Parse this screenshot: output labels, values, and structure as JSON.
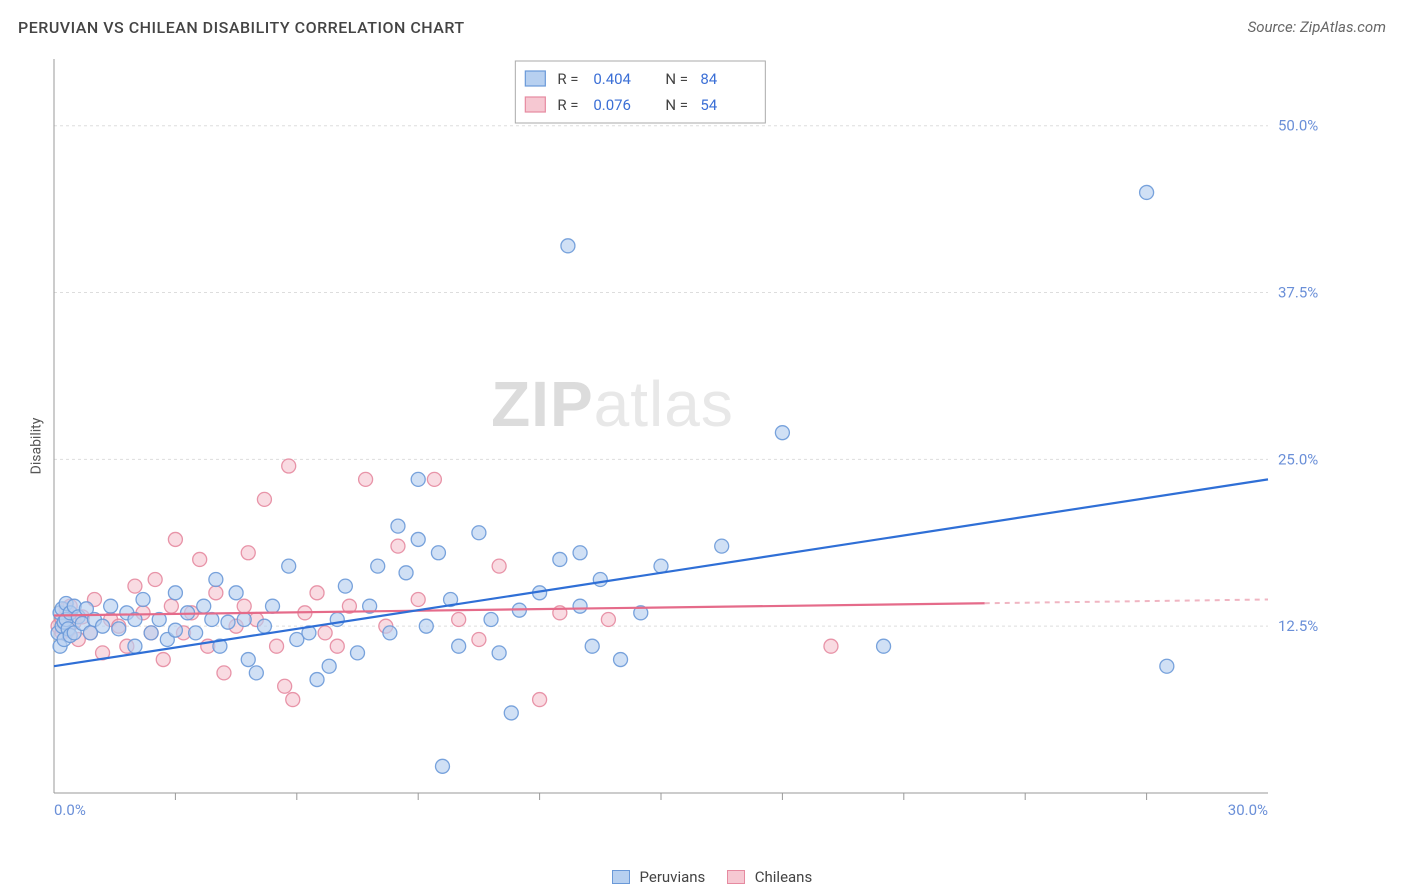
{
  "title": "PERUVIAN VS CHILEAN DISABILITY CORRELATION CHART",
  "source_label": "Source: ZipAtlas.com",
  "y_axis_label": "Disability",
  "watermark": {
    "bold": "ZIP",
    "light": "atlas"
  },
  "chart": {
    "type": "scatter",
    "background_color": "#ffffff",
    "grid_color": "#dddddd",
    "axis_color": "#999999",
    "xlim": [
      0,
      30
    ],
    "ylim": [
      0,
      55
    ],
    "x_tick_step": 3,
    "y_gridlines": [
      12.5,
      25.0,
      37.5,
      50.0
    ],
    "y_tick_labels": [
      "12.5%",
      "25.0%",
      "37.5%",
      "50.0%"
    ],
    "x_origin_label": "0.0%",
    "x_max_label": "30.0%",
    "marker_radius": 7,
    "marker_stroke_width": 1.3,
    "series": [
      {
        "name": "Peruvians",
        "color_fill": "#b7d0f0",
        "color_stroke": "#6a99d8",
        "regression_color": "#2f6fd6",
        "r": "0.404",
        "n": "84",
        "regression": {
          "x0": 0,
          "y0": 9.5,
          "x1": 30,
          "y1": 23.5,
          "solid_until_x": 30
        },
        "points": [
          [
            0.1,
            12.0
          ],
          [
            0.15,
            13.5
          ],
          [
            0.15,
            11.0
          ],
          [
            0.2,
            12.5
          ],
          [
            0.2,
            13.8
          ],
          [
            0.25,
            12.8
          ],
          [
            0.25,
            11.5
          ],
          [
            0.3,
            13.0
          ],
          [
            0.3,
            14.2
          ],
          [
            0.35,
            12.3
          ],
          [
            0.4,
            13.5
          ],
          [
            0.4,
            11.8
          ],
          [
            0.5,
            12.0
          ],
          [
            0.5,
            14.0
          ],
          [
            0.6,
            13.2
          ],
          [
            0.7,
            12.7
          ],
          [
            0.8,
            13.8
          ],
          [
            0.9,
            12.0
          ],
          [
            1.0,
            13.0
          ],
          [
            1.2,
            12.5
          ],
          [
            1.4,
            14.0
          ],
          [
            1.6,
            12.3
          ],
          [
            1.8,
            13.5
          ],
          [
            2.0,
            11.0
          ],
          [
            2.0,
            13.0
          ],
          [
            2.2,
            14.5
          ],
          [
            2.4,
            12.0
          ],
          [
            2.6,
            13.0
          ],
          [
            2.8,
            11.5
          ],
          [
            3.0,
            12.2
          ],
          [
            3.0,
            15.0
          ],
          [
            3.3,
            13.5
          ],
          [
            3.5,
            12.0
          ],
          [
            3.7,
            14.0
          ],
          [
            3.9,
            13.0
          ],
          [
            4.0,
            16.0
          ],
          [
            4.1,
            11.0
          ],
          [
            4.3,
            12.8
          ],
          [
            4.5,
            15.0
          ],
          [
            4.7,
            13.0
          ],
          [
            4.8,
            10.0
          ],
          [
            5.0,
            9.0
          ],
          [
            5.2,
            12.5
          ],
          [
            5.4,
            14.0
          ],
          [
            5.8,
            17.0
          ],
          [
            6.0,
            11.5
          ],
          [
            6.3,
            12.0
          ],
          [
            6.5,
            8.5
          ],
          [
            6.8,
            9.5
          ],
          [
            7.0,
            13.0
          ],
          [
            7.2,
            15.5
          ],
          [
            7.5,
            10.5
          ],
          [
            7.8,
            14.0
          ],
          [
            8.0,
            17.0
          ],
          [
            8.3,
            12.0
          ],
          [
            8.5,
            20.0
          ],
          [
            8.7,
            16.5
          ],
          [
            9.0,
            23.5
          ],
          [
            9.0,
            19.0
          ],
          [
            9.2,
            12.5
          ],
          [
            9.5,
            18.0
          ],
          [
            9.6,
            2.0
          ],
          [
            9.8,
            14.5
          ],
          [
            10.0,
            11.0
          ],
          [
            10.5,
            19.5
          ],
          [
            10.8,
            13.0
          ],
          [
            11.0,
            10.5
          ],
          [
            11.3,
            6.0
          ],
          [
            11.5,
            13.7
          ],
          [
            12.0,
            15.0
          ],
          [
            12.5,
            17.5
          ],
          [
            12.7,
            41.0
          ],
          [
            13.0,
            14.0
          ],
          [
            13.0,
            18.0
          ],
          [
            13.3,
            11.0
          ],
          [
            13.5,
            16.0
          ],
          [
            14.0,
            10.0
          ],
          [
            14.5,
            13.5
          ],
          [
            15.0,
            17.0
          ],
          [
            16.5,
            18.5
          ],
          [
            18.0,
            27.0
          ],
          [
            20.5,
            11.0
          ],
          [
            27.0,
            45.0
          ],
          [
            27.5,
            9.5
          ]
        ]
      },
      {
        "name": "Chileans",
        "color_fill": "#f6c8d2",
        "color_stroke": "#e68aa0",
        "regression_color": "#e56b8a",
        "regression_dash_color": "#f0b5c2",
        "r": "0.076",
        "n": "54",
        "regression": {
          "x0": 0,
          "y0": 13.3,
          "x1": 30,
          "y1": 14.5,
          "solid_until_x": 23
        },
        "points": [
          [
            0.1,
            12.5
          ],
          [
            0.2,
            13.0
          ],
          [
            0.2,
            12.0
          ],
          [
            0.3,
            13.8
          ],
          [
            0.35,
            12.2
          ],
          [
            0.4,
            14.0
          ],
          [
            0.5,
            12.8
          ],
          [
            0.6,
            11.5
          ],
          [
            0.7,
            13.2
          ],
          [
            0.9,
            12.0
          ],
          [
            1.0,
            14.5
          ],
          [
            1.2,
            10.5
          ],
          [
            1.4,
            13.0
          ],
          [
            1.6,
            12.5
          ],
          [
            1.8,
            11.0
          ],
          [
            2.0,
            15.5
          ],
          [
            2.2,
            13.5
          ],
          [
            2.4,
            12.0
          ],
          [
            2.5,
            16.0
          ],
          [
            2.7,
            10.0
          ],
          [
            2.9,
            14.0
          ],
          [
            3.0,
            19.0
          ],
          [
            3.2,
            12.0
          ],
          [
            3.4,
            13.5
          ],
          [
            3.6,
            17.5
          ],
          [
            3.8,
            11.0
          ],
          [
            4.0,
            15.0
          ],
          [
            4.2,
            9.0
          ],
          [
            4.5,
            12.5
          ],
          [
            4.7,
            14.0
          ],
          [
            4.8,
            18.0
          ],
          [
            5.0,
            13.0
          ],
          [
            5.2,
            22.0
          ],
          [
            5.5,
            11.0
          ],
          [
            5.7,
            8.0
          ],
          [
            5.8,
            24.5
          ],
          [
            5.9,
            7.0
          ],
          [
            6.2,
            13.5
          ],
          [
            6.5,
            15.0
          ],
          [
            6.7,
            12.0
          ],
          [
            7.0,
            11.0
          ],
          [
            7.3,
            14.0
          ],
          [
            7.7,
            23.5
          ],
          [
            8.2,
            12.5
          ],
          [
            8.5,
            18.5
          ],
          [
            9.0,
            14.5
          ],
          [
            9.4,
            23.5
          ],
          [
            10.0,
            13.0
          ],
          [
            10.5,
            11.5
          ],
          [
            11.0,
            17.0
          ],
          [
            12.0,
            7.0
          ],
          [
            12.5,
            13.5
          ],
          [
            13.7,
            13.0
          ],
          [
            19.2,
            11.0
          ]
        ]
      }
    ]
  },
  "stat_legend": {
    "border_color": "#aaaaaa",
    "bg_color": "#ffffff",
    "rows": [
      {
        "swatch_fill": "#b7d0f0",
        "swatch_stroke": "#6a99d8",
        "r_label": "R =",
        "r_val": "0.404",
        "n_label": "N =",
        "n_val": "84"
      },
      {
        "swatch_fill": "#f6c8d2",
        "swatch_stroke": "#e68aa0",
        "r_label": "R =",
        "r_val": "0.076",
        "n_label": "N =",
        "n_val": "54"
      }
    ]
  },
  "bottom_legend": {
    "items": [
      {
        "label": "Peruvians",
        "fill": "#b7d0f0",
        "stroke": "#6a99d8"
      },
      {
        "label": "Chileans",
        "fill": "#f6c8d2",
        "stroke": "#e68aa0"
      }
    ]
  }
}
